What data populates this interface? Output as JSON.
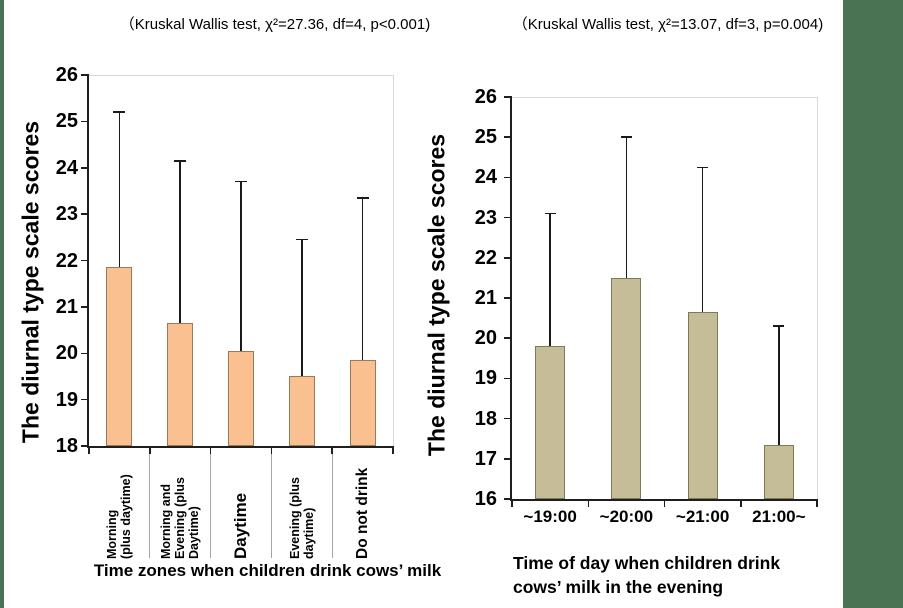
{
  "decor": {
    "left_strip_color": "#4a7354",
    "right_strip_color": "#4a7354"
  },
  "chart_data": [
    {
      "type": "bar",
      "title": "（Kruskal Wallis test, χ²=27.36, df=4, p<0.001)",
      "ylabel": "The diurnal type scale scores",
      "xlabel": "Time zones when children drink cows’ milk",
      "categories": [
        "Morning (plus daytime)",
        "Morning and Evening (plus Daytime)",
        "Daytime",
        "Evening (plus daytime)",
        "Do not drink"
      ],
      "category_lines": [
        [
          "Morning",
          "(plus daytime)"
        ],
        [
          "Morning and",
          "Evening (plus",
          "Daytime)"
        ],
        [
          "Daytime"
        ],
        [
          "Evening (plus",
          "daytime)"
        ],
        [
          "Do not drink"
        ]
      ],
      "values": [
        21.85,
        20.65,
        20.05,
        19.5,
        19.85
      ],
      "error_top": [
        25.2,
        24.15,
        23.7,
        22.45,
        23.35
      ],
      "ylim": [
        18,
        26
      ],
      "ytick_step": 1,
      "grid": false,
      "legend": null,
      "bar_fill": "#FAC090",
      "bar_border": "#9b7b57",
      "axis_color": "#1f1f1f",
      "frame_color": "#d9d9d9",
      "error_color": "#1a1a1a"
    },
    {
      "type": "bar",
      "title": "（Kruskal Wallis test, χ²=13.07, df=3, p=0.004)",
      "ylabel": "The diurnal type scale scores",
      "xlabel": "Time of day when children drink cows’ milk in the evening",
      "xlabel_lines": [
        "Time of day when children drink",
        "cows’ milk in the evening"
      ],
      "categories": [
        "~19:00",
        "~20:00",
        "~21:00",
        "21:00~"
      ],
      "values": [
        19.8,
        21.5,
        20.65,
        17.35
      ],
      "error_top": [
        23.1,
        25.0,
        24.25,
        20.3
      ],
      "ylim": [
        16,
        26
      ],
      "ytick_step": 1,
      "grid": false,
      "legend": null,
      "bar_fill": "#C5BD98",
      "bar_border": "#7c7b55",
      "axis_color": "#1f1f1f",
      "frame_color": "#d9d9d9",
      "error_color": "#1a1a1a"
    }
  ]
}
